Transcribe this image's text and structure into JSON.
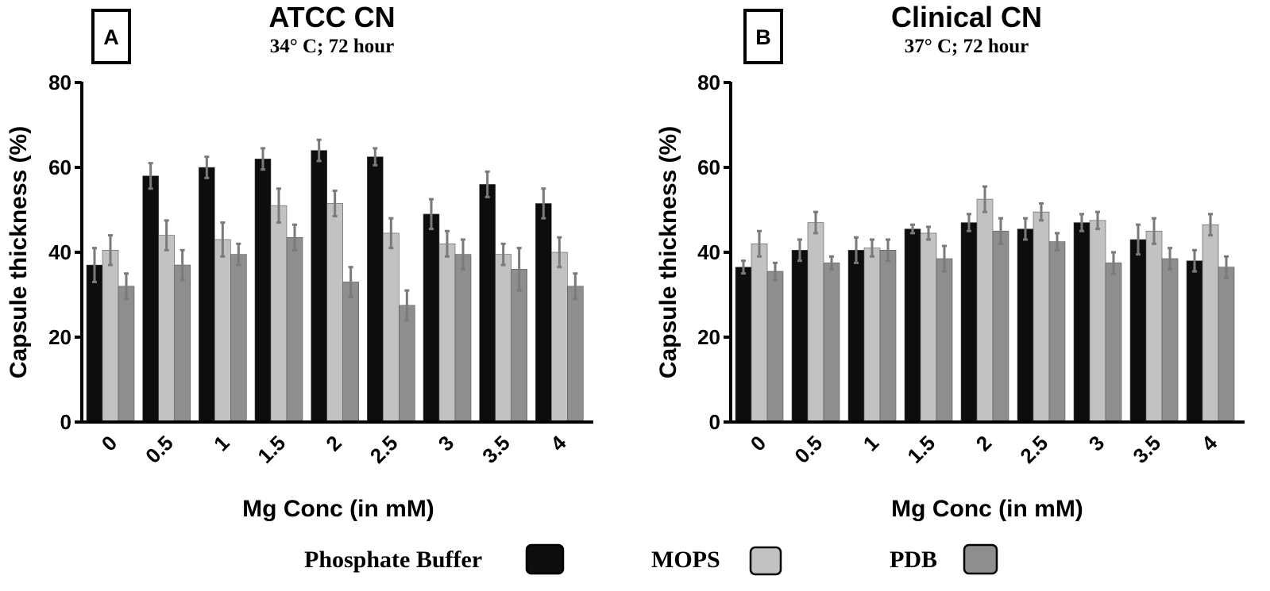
{
  "chart_data": [
    {
      "type": "bar",
      "panel_label": "A",
      "title": "ATCC CN",
      "subtitle": "34° C; 72 hour",
      "xlabel": "Mg Conc (in mM)",
      "ylabel": "Capsule thickness (%)",
      "ylim": [
        0,
        80
      ],
      "yticks": [
        "0",
        "20",
        "40",
        "60",
        "80"
      ],
      "grid": false,
      "categories": [
        "0",
        "0.5",
        "1",
        "1.5",
        "2",
        "2.5",
        "3",
        "3.5",
        "4"
      ],
      "series": [
        {
          "name": "Phosphate Buffer",
          "color": "#0d0d0d",
          "values": [
            37,
            58,
            60,
            62,
            64,
            62.5,
            49,
            56,
            51.5
          ],
          "errors": [
            4,
            3,
            2.5,
            2.5,
            2.5,
            2,
            3.5,
            3,
            3.5
          ]
        },
        {
          "name": "MOPS",
          "color": "#c2c2c2",
          "values": [
            40.5,
            44,
            43,
            51,
            51.5,
            44.5,
            42,
            39.5,
            40
          ],
          "errors": [
            3.5,
            3.5,
            4,
            4,
            3,
            3.5,
            3,
            2.5,
            3.5
          ]
        },
        {
          "name": "PDB",
          "color": "#8e8e8e",
          "values": [
            32,
            37,
            39.5,
            43.5,
            33,
            27.5,
            39.5,
            36,
            32
          ],
          "errors": [
            3,
            3.5,
            2.5,
            3,
            3.5,
            3.5,
            3.5,
            5,
            3
          ]
        }
      ]
    },
    {
      "type": "bar",
      "panel_label": "B",
      "title": "Clinical CN",
      "subtitle": "37° C; 72 hour",
      "xlabel": "Mg Conc (in mM)",
      "ylabel": "Capsule thickness (%)",
      "ylim": [
        0,
        80
      ],
      "yticks": [
        "0",
        "20",
        "40",
        "60",
        "80"
      ],
      "grid": false,
      "categories": [
        "0",
        "0.5",
        "1",
        "1.5",
        "2",
        "2.5",
        "3",
        "3.5",
        "4"
      ],
      "series": [
        {
          "name": "Phosphate Buffer",
          "color": "#0d0d0d",
          "values": [
            36.5,
            40.5,
            40.5,
            45.5,
            47,
            45.5,
            47,
            43,
            38
          ],
          "errors": [
            1.5,
            2.5,
            3,
            1,
            2,
            2.5,
            2,
            3.5,
            2.5
          ]
        },
        {
          "name": "MOPS",
          "color": "#c2c2c2",
          "values": [
            42,
            47,
            41,
            44.5,
            52.5,
            49.5,
            47.5,
            45,
            46.5
          ],
          "errors": [
            3,
            2.5,
            2,
            1.5,
            3,
            2,
            2,
            3,
            2.5
          ]
        },
        {
          "name": "PDB",
          "color": "#8e8e8e",
          "values": [
            35.5,
            37.5,
            40.5,
            38.5,
            45,
            42.5,
            37.5,
            38.5,
            36.5
          ],
          "errors": [
            2,
            1.5,
            2.5,
            3,
            3,
            2,
            2.5,
            2.5,
            2.5
          ]
        }
      ]
    }
  ],
  "legend": {
    "position": "bottom",
    "items": [
      {
        "label": "Phosphate Buffer",
        "color": "#0d0d0d"
      },
      {
        "label": "MOPS",
        "color": "#c2c2c2"
      },
      {
        "label": "PDB",
        "color": "#8e8e8e"
      }
    ]
  }
}
